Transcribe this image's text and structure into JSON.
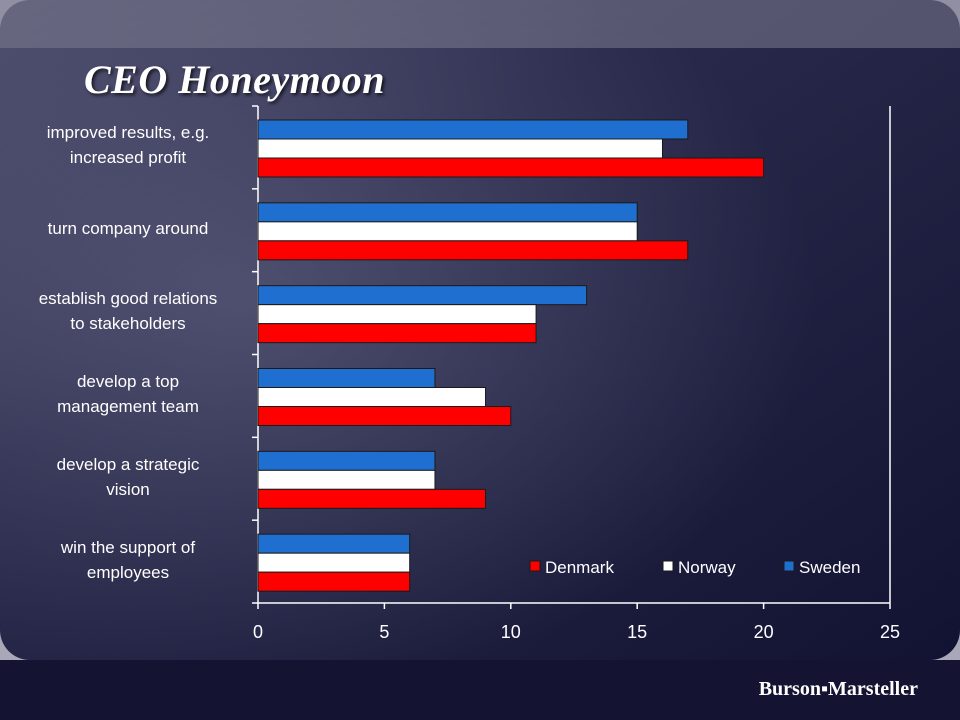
{
  "slide": {
    "title": "CEO Honeymoon"
  },
  "logo": {
    "text": "Burson▪Marsteller"
  },
  "colors": {
    "background": "#1c1b3b",
    "plot_border": "#ffffff",
    "Denmark": "#ff0000",
    "Norway": "#ffffff",
    "Sweden": "#1f6fd1"
  },
  "chart_data": {
    "type": "bar",
    "orientation": "horizontal",
    "categories": [
      [
        "improved results, e.g.",
        "increased profit"
      ],
      [
        "turn company around"
      ],
      [
        "establish good relations",
        "to stakeholders"
      ],
      [
        "develop a top",
        "management team"
      ],
      [
        "develop a strategic",
        "vision"
      ],
      [
        "win the support of",
        "employees"
      ]
    ],
    "series": [
      {
        "name": "Sweden",
        "values": [
          17,
          15,
          13,
          7,
          7,
          6
        ]
      },
      {
        "name": "Norway",
        "values": [
          16,
          15,
          11,
          9,
          7,
          6
        ]
      },
      {
        "name": "Denmark",
        "values": [
          20,
          17,
          11,
          10,
          9,
          6
        ]
      }
    ],
    "legend_order": [
      "Denmark",
      "Norway",
      "Sweden"
    ],
    "xlim": [
      0,
      25
    ],
    "xticks": [
      0,
      5,
      10,
      15,
      20,
      25
    ],
    "legend_position": "bottom-right",
    "grid": false
  }
}
